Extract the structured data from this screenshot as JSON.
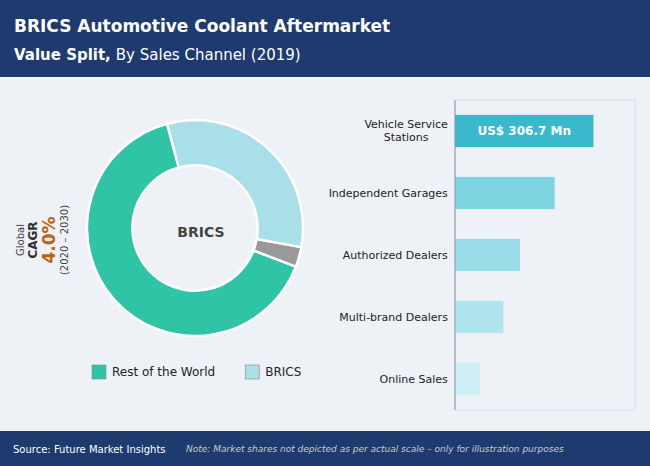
{
  "title": "BRICS Automotive Coolant Aftermarket",
  "subtitle": [
    "Value Split,",
    "By Sales Channel (2019)"
  ],
  "annotations": [
    "Global",
    "CAGR",
    "4.0%",
    "(2020 – 2030)"
  ],
  "source": "Source: Future Market Insights",
  "note": "Note: Market shares not depicted as per actual scale – only for illustration purposes",
  "chart_data": [
    {
      "type": "donut",
      "categories": [
        "Rest of the World",
        null,
        "BRICS"
      ],
      "values": [
        65,
        3,
        32
      ],
      "colors": [
        "#2ec4a5",
        "#999999",
        "#a8dfe8"
      ],
      "legend": "bottom",
      "annotations": [
        "BRICS"
      ]
    },
    {
      "type": "bar",
      "orientation": "horizontal",
      "categories": [
        "Vehicle Service\nStations",
        "Independent Garages",
        "Authorized Dealers",
        "Multi-brand Dealers",
        "Online Sales"
      ],
      "values": [
        100,
        72,
        47,
        35,
        18
      ],
      "colors": [
        "#3ab8cc",
        "#7dd4e0",
        "#9adde8",
        "#b0e5ee",
        "#cdf0f6"
      ],
      "xlim": [
        0,
        130
      ],
      "tick_labels": false,
      "grid": false,
      "annotations": [
        "US$ 306.7 Mn"
      ]
    }
  ]
}
